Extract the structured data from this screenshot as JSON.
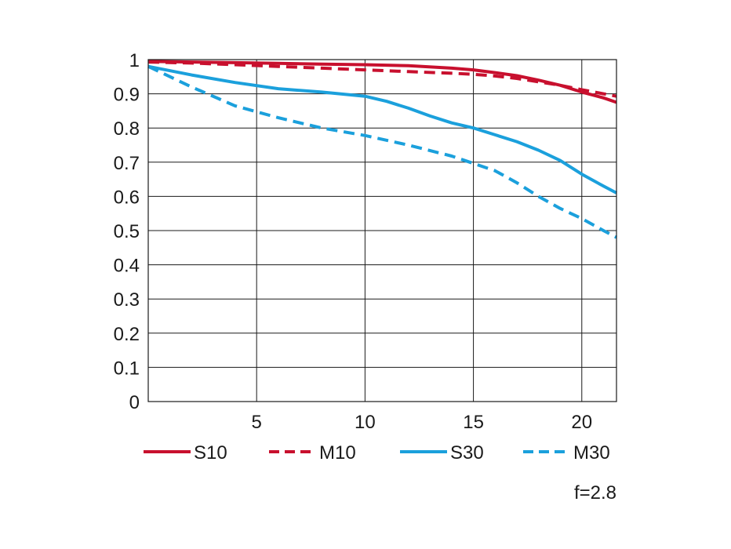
{
  "chart_data": {
    "type": "line",
    "title": "",
    "xlabel": "",
    "ylabel": "",
    "xlim": [
      0,
      21.6
    ],
    "ylim": [
      0,
      1
    ],
    "x_ticks": [
      "5",
      "10",
      "15",
      "20"
    ],
    "x_tick_values": [
      5,
      10,
      15,
      20
    ],
    "y_ticks": [
      "0",
      "0.1",
      "0.2",
      "0.3",
      "0.4",
      "0.5",
      "0.6",
      "0.7",
      "0.8",
      "0.9",
      "1"
    ],
    "y_tick_values": [
      0,
      0.1,
      0.2,
      0.3,
      0.4,
      0.5,
      0.6,
      0.7,
      0.8,
      0.9,
      1
    ],
    "grid": true,
    "legend_position": "bottom",
    "annotation": "f=2.8",
    "series": [
      {
        "name": "S10",
        "color": "#c8102e",
        "dash": "solid",
        "x": [
          0,
          2,
          4,
          6,
          8,
          10,
          12,
          14,
          15,
          16,
          17,
          18,
          19,
          20,
          21,
          21.6
        ],
        "y": [
          0.995,
          0.993,
          0.991,
          0.989,
          0.987,
          0.985,
          0.982,
          0.975,
          0.97,
          0.962,
          0.953,
          0.94,
          0.925,
          0.905,
          0.888,
          0.875
        ]
      },
      {
        "name": "M10",
        "color": "#c8102e",
        "dash": "dashed",
        "x": [
          0,
          2,
          4,
          6,
          8,
          10,
          12,
          14,
          15,
          16,
          17,
          18,
          19,
          20,
          21,
          21.6
        ],
        "y": [
          0.993,
          0.99,
          0.985,
          0.98,
          0.975,
          0.97,
          0.965,
          0.96,
          0.957,
          0.952,
          0.945,
          0.935,
          0.925,
          0.912,
          0.9,
          0.893
        ]
      },
      {
        "name": "S30",
        "color": "#1ba0dc",
        "dash": "solid",
        "x": [
          0,
          2,
          4,
          6,
          8,
          10,
          11,
          12,
          13,
          14,
          15,
          16,
          17,
          18,
          19,
          20,
          21,
          21.6
        ],
        "y": [
          0.98,
          0.955,
          0.933,
          0.915,
          0.905,
          0.893,
          0.878,
          0.858,
          0.835,
          0.815,
          0.8,
          0.78,
          0.76,
          0.735,
          0.705,
          0.665,
          0.63,
          0.61
        ]
      },
      {
        "name": "M30",
        "color": "#1ba0dc",
        "dash": "dashed",
        "x": [
          0,
          2,
          4,
          6,
          8,
          10,
          12,
          14,
          16,
          17,
          18,
          19,
          20,
          21,
          21.6
        ],
        "y": [
          0.98,
          0.92,
          0.865,
          0.83,
          0.8,
          0.778,
          0.75,
          0.718,
          0.675,
          0.64,
          0.6,
          0.565,
          0.535,
          0.5,
          0.48
        ]
      }
    ]
  }
}
